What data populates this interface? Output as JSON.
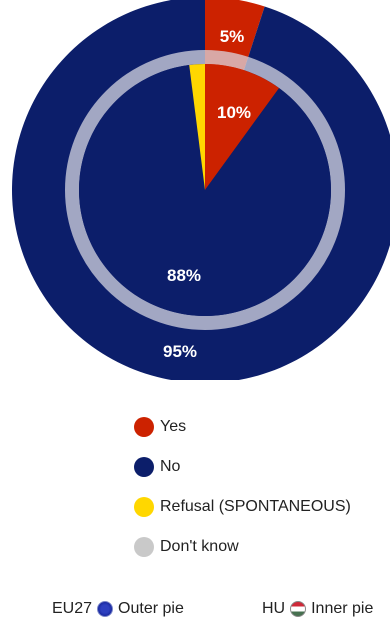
{
  "chart_data": {
    "type": "pie",
    "variant": "nested",
    "colors": {
      "Yes": "#cc2200",
      "No": "#0c1e6a",
      "Refusal (SPONTANEOUS)": "#ffd700",
      "Don't know": "#c9c9c9"
    },
    "categories": [
      "Yes",
      "No",
      "Refusal (SPONTANEOUS)",
      "Don't know"
    ],
    "series": [
      {
        "name": "EU27",
        "ring": "outer",
        "values": [
          5,
          95,
          0,
          0
        ],
        "labels": [
          "5%",
          "95%",
          "",
          ""
        ]
      },
      {
        "name": "HU",
        "ring": "inner",
        "values": [
          10,
          88,
          2,
          0
        ],
        "labels": [
          "10%",
          "88%",
          "",
          ""
        ]
      }
    ],
    "legend": [
      {
        "label": "Yes",
        "color": "#cc2200"
      },
      {
        "label": "No",
        "color": "#0c1e6a"
      },
      {
        "label": "Refusal (SPONTANEOUS)",
        "color": "#ffd700"
      },
      {
        "label": "Don't know",
        "color": "#c9c9c9"
      }
    ],
    "legend_position": "bottom",
    "footer": {
      "outer": {
        "country": "EU27",
        "text": "Outer pie",
        "flag_icon": "eu-flag-icon"
      },
      "inner": {
        "country": "HU",
        "text": "Inner pie",
        "flag_icon": "hu-flag-icon"
      }
    }
  }
}
